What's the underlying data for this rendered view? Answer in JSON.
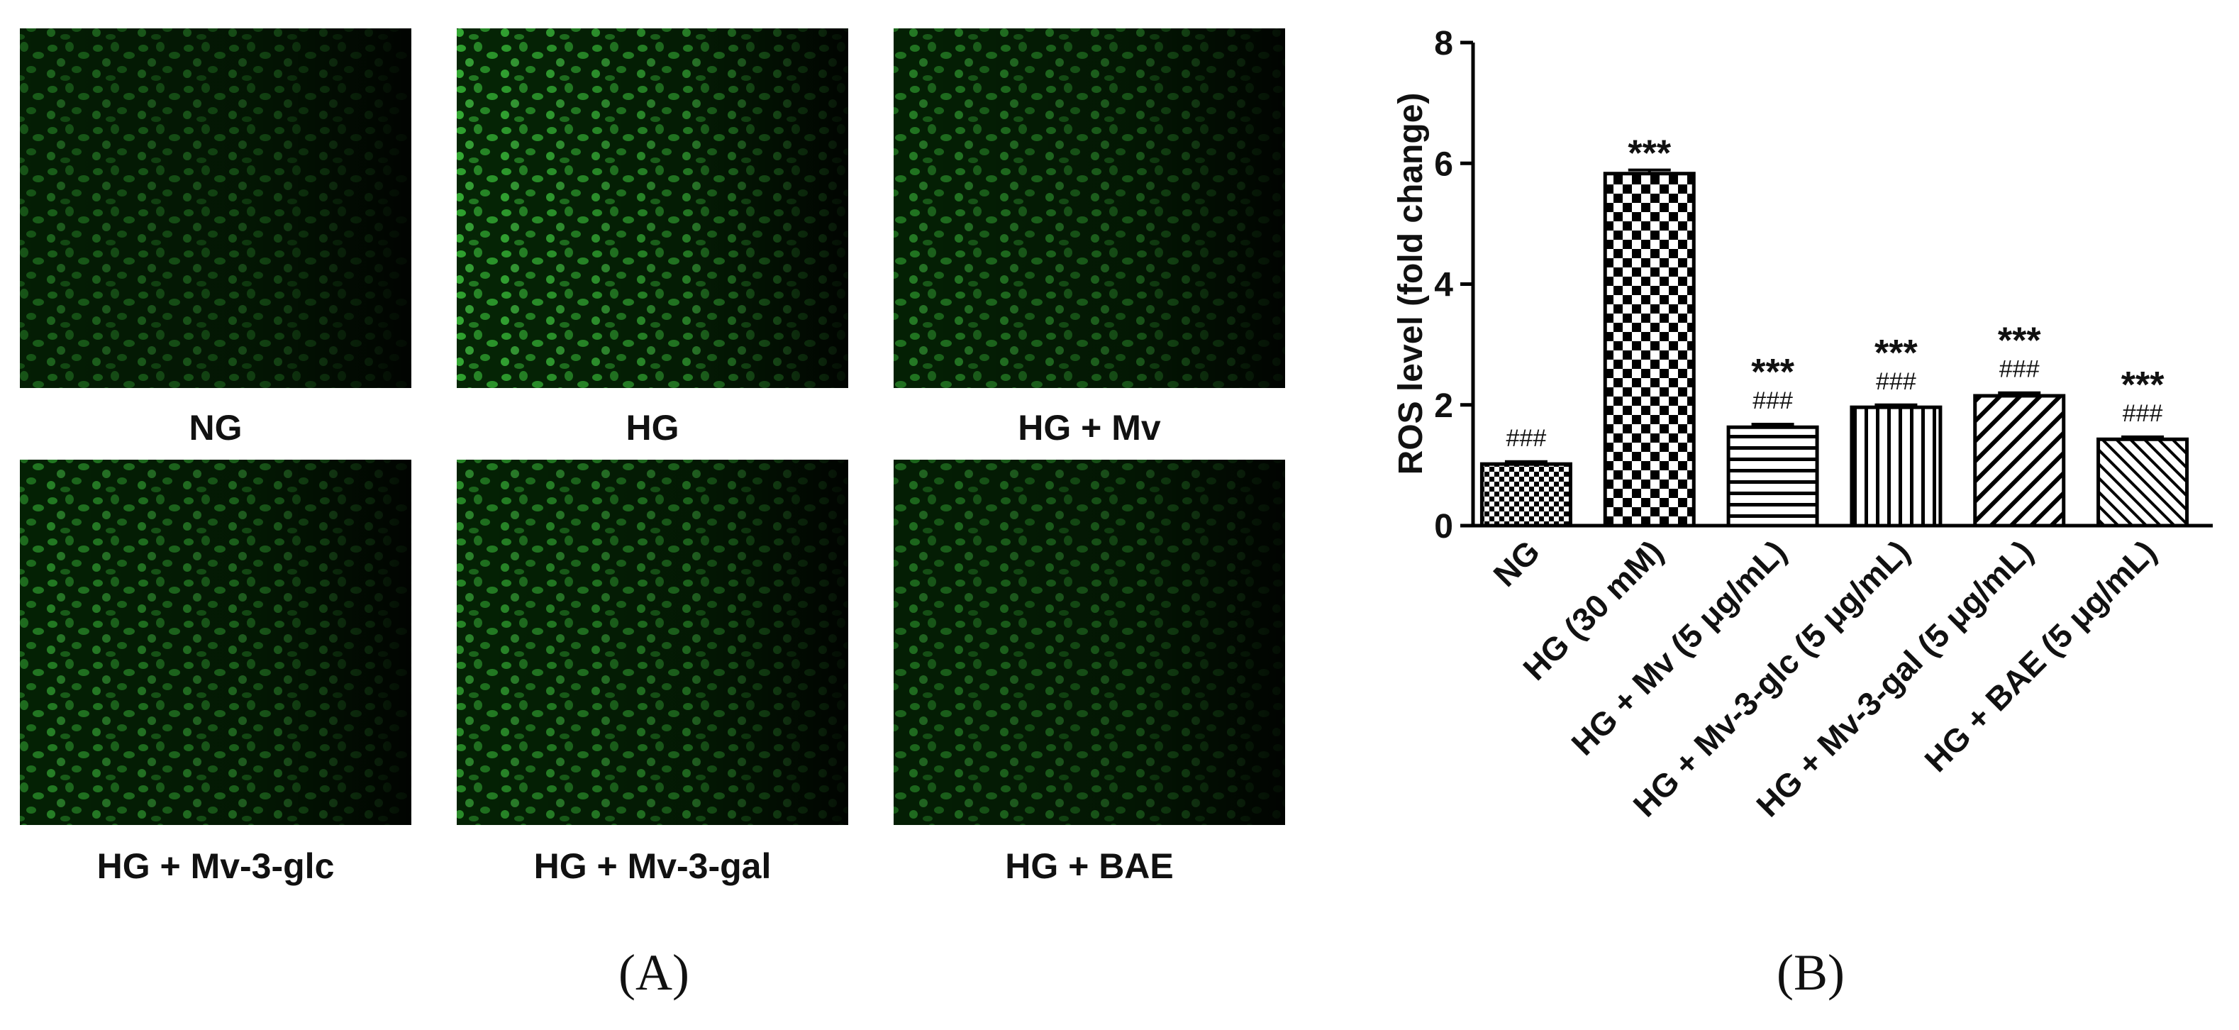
{
  "images": {
    "labels": [
      "NG",
      "HG",
      "HG + Mv",
      "HG + Mv-3-glc",
      "HG + Mv-3-gal",
      "HG + BAE"
    ]
  },
  "panel_labels": [
    "(A)",
    "(B)"
  ],
  "chart_data": {
    "type": "bar",
    "ylabel": "ROS level (fold change)",
    "categories": [
      "NG",
      "HG (30 mM)",
      "HG + Mv (5 μg/mL)",
      "HG + Mv-3-glc (5 μg/mL)",
      "HG + Mv-3-gal (5 μg/mL)",
      "HG + BAE (5 μg/mL)"
    ],
    "values": [
      1.02,
      5.83,
      1.63,
      1.96,
      2.15,
      1.43
    ],
    "errors": [
      0.04,
      0.06,
      0.05,
      0.04,
      0.05,
      0.04
    ],
    "annotations": [
      [
        "###"
      ],
      [
        "***"
      ],
      [
        "***",
        "###"
      ],
      [
        "***",
        "###"
      ],
      [
        "***",
        "###"
      ],
      [
        "***",
        "###"
      ]
    ],
    "patterns": [
      "checker-small",
      "checker",
      "horizontal",
      "vertical",
      "diagonal",
      "diagonal-back"
    ],
    "color": "#000000",
    "ylim": [
      0,
      8
    ],
    "yticks": [
      0,
      2,
      4,
      6,
      8
    ]
  }
}
